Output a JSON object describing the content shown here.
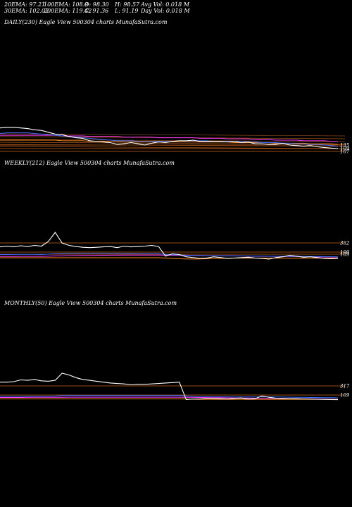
{
  "header": {
    "ema20": "20EMA: 97.21",
    "ema100": "100EMA: 108.9",
    "open": "O: 98.30",
    "high": "H: 98.57",
    "avg_vol": "Avg Vol: 0.018 M",
    "ema30": "30EMA: 102.02",
    "ema200": "200EMA: 119.42",
    "close": "C: 91.36",
    "low": "L: 91.19",
    "day_vol": "Day Vol: 0.018 M"
  },
  "panels": [
    {
      "id": "daily",
      "label": "DAILY(230) Eagle View 500304 charts MunafaSutra.com",
      "right_labels": [
        "135",
        "109",
        "107"
      ]
    },
    {
      "id": "weekly",
      "label": "WEEKLY(212) Eagle View 500304 charts MunafaSutra.com",
      "right_labels": [
        "352",
        "100",
        "109"
      ]
    },
    {
      "id": "monthly",
      "label": "MONTHLY(50) Eagle View 500304 charts MunafaSutra.com",
      "right_labels": [
        "317",
        "109"
      ]
    }
  ],
  "colors": {
    "background": "#000000",
    "price": "#ffffff",
    "ema_blue": "#3f6fff",
    "ema_orange": "#ff8c1a",
    "ema_magenta": "#ff3cff",
    "reference_line": "#c8641e"
  },
  "chart_data": [
    {
      "type": "line",
      "panel": "daily",
      "x": [
        0,
        1,
        2,
        3,
        4,
        5,
        6,
        7,
        8,
        9,
        10,
        11,
        12,
        13,
        14,
        15,
        16,
        17,
        18,
        19,
        20,
        21,
        22,
        23,
        24,
        25,
        26,
        27,
        28,
        29,
        30,
        31,
        32,
        33,
        34,
        35,
        36,
        37,
        38,
        39,
        40,
        41,
        42,
        43,
        44,
        45,
        46,
        47,
        48,
        49
      ],
      "series": [
        {
          "color": "#ffffff",
          "values": [
            140,
            141,
            141,
            140,
            139,
            137,
            136,
            133,
            130,
            129,
            126,
            124,
            123,
            119,
            118,
            117,
            116,
            113,
            114,
            116,
            114,
            112,
            115,
            117,
            116,
            118,
            119,
            119,
            120,
            118,
            118,
            118,
            118,
            117,
            118,
            116,
            117,
            114,
            114,
            113,
            113,
            115,
            112,
            111,
            110,
            111,
            109,
            108,
            107,
            106
          ]
        },
        {
          "color": "#3f6fff",
          "values": [
            131,
            132,
            132,
            132,
            132,
            131,
            130,
            129,
            128,
            127,
            126,
            125,
            124,
            123,
            122,
            121,
            120,
            119,
            119,
            119,
            118,
            118,
            118,
            118,
            118,
            118,
            119,
            119,
            119,
            119,
            119,
            118,
            118,
            118,
            118,
            118,
            117,
            117,
            116,
            116,
            116,
            115,
            115,
            114,
            114,
            113,
            113,
            112,
            111,
            110
          ]
        },
        {
          "color": "#ff8c1a",
          "values": [
            120,
            120,
            120,
            120,
            120,
            120,
            120,
            120,
            120,
            119,
            119,
            119,
            119,
            118,
            118,
            118,
            118,
            118,
            117,
            117,
            117,
            117,
            117,
            117,
            117,
            117,
            117,
            117,
            117,
            117,
            117,
            117,
            117,
            117,
            116,
            116,
            116,
            116,
            116,
            116,
            115,
            115,
            115,
            115,
            115,
            114,
            114,
            114,
            114,
            113
          ]
        },
        {
          "color": "#ff3cff",
          "values": [
            128,
            128,
            128,
            128,
            128,
            128,
            128,
            128,
            128,
            127,
            127,
            127,
            127,
            126,
            126,
            126,
            126,
            126,
            125,
            125,
            125,
            125,
            125,
            124,
            124,
            124,
            124,
            124,
            124,
            123,
            123,
            123,
            123,
            122,
            122,
            122,
            122,
            121,
            121,
            121,
            120,
            120,
            120,
            120,
            119,
            119,
            119,
            119,
            118,
            118
          ]
        }
      ],
      "reference_levels": [
        135,
        109,
        107
      ],
      "tick_labels": [
        "135",
        "109",
        "107"
      ]
    },
    {
      "type": "line",
      "panel": "weekly",
      "x": [
        0,
        1,
        2,
        3,
        4,
        5,
        6,
        7,
        8,
        9,
        10,
        11,
        12,
        13,
        14,
        15,
        16,
        17,
        18,
        19,
        20,
        21,
        22,
        23,
        24,
        25,
        26,
        27,
        28,
        29,
        30,
        31,
        32,
        33,
        34,
        35,
        36,
        37,
        38,
        39,
        40,
        41,
        42,
        43,
        44,
        45,
        46,
        47,
        48,
        49
      ],
      "series": [
        {
          "color": "#ffffff",
          "values": [
            250,
            260,
            250,
            265,
            255,
            270,
            260,
            320,
            440,
            300,
            270,
            255,
            245,
            240,
            245,
            250,
            255,
            240,
            260,
            250,
            255,
            260,
            270,
            255,
            130,
            160,
            150,
            120,
            110,
            100,
            105,
            120,
            110,
            100,
            105,
            110,
            115,
            105,
            100,
            90,
            110,
            120,
            140,
            130,
            115,
            120,
            110,
            100,
            95,
            100
          ]
        },
        {
          "color": "#3f6fff",
          "values": [
            150,
            150,
            151,
            152,
            153,
            152,
            150,
            155,
            162,
            164,
            165,
            166,
            166,
            166,
            166,
            166,
            165,
            165,
            165,
            164,
            163,
            162,
            162,
            161,
            150,
            148,
            145,
            142,
            140,
            138,
            137,
            136,
            135,
            134,
            133,
            132,
            131,
            130,
            129,
            128,
            128,
            127,
            127,
            126,
            126,
            125,
            124,
            123,
            122,
            121
          ]
        },
        {
          "color": "#ff8c1a",
          "values": [
            108,
            108,
            108,
            108,
            108,
            108,
            108,
            108,
            108,
            108,
            108,
            108,
            108,
            108,
            108,
            108,
            108,
            108,
            108,
            108,
            108,
            108,
            108,
            108,
            105,
            100,
            95,
            92,
            91,
            92,
            95,
            98,
            100,
            102,
            104,
            104,
            104,
            104,
            104,
            104,
            104,
            104,
            104,
            104,
            104,
            104,
            104,
            104,
            104,
            104
          ]
        },
        {
          "color": "#ff3cff",
          "values": [
            124,
            124,
            125,
            126,
            126,
            126,
            126,
            128,
            132,
            134,
            136,
            137,
            138,
            139,
            140,
            141,
            142,
            142,
            143,
            143,
            143,
            143,
            143,
            143,
            142,
            141,
            140,
            139,
            138,
            137,
            136,
            135,
            134,
            133,
            132,
            131,
            130,
            129,
            128,
            127,
            126,
            125,
            124,
            123,
            122,
            121,
            120,
            119,
            118,
            117
          ]
        }
      ],
      "reference_levels": [
        352,
        100,
        109
      ],
      "tick_labels": [
        "352",
        "100",
        "109"
      ]
    },
    {
      "type": "line",
      "panel": "monthly",
      "x": [
        0,
        1,
        2,
        3,
        4,
        5,
        6,
        7,
        8,
        9,
        10,
        11,
        12,
        13,
        14,
        15,
        16,
        17,
        18,
        19,
        20,
        21,
        22,
        23,
        24,
        25,
        26,
        27,
        28,
        29,
        30,
        31,
        32,
        33,
        34,
        35,
        36,
        37,
        38,
        39,
        40,
        41,
        42,
        43,
        44,
        45,
        46,
        47,
        48,
        49
      ],
      "series": [
        {
          "color": "#ffffff",
          "values": [
            300,
            300,
            305,
            325,
            320,
            330,
            315,
            310,
            320,
            400,
            380,
            350,
            330,
            320,
            310,
            300,
            290,
            285,
            280,
            270,
            275,
            275,
            280,
            285,
            290,
            295,
            300,
            105,
            110,
            110,
            120,
            118,
            115,
            112,
            118,
            122,
            110,
            115,
            145,
            130,
            120,
            118,
            116,
            114,
            112,
            110,
            108,
            106,
            104,
            103
          ]
        },
        {
          "color": "#3f6fff",
          "values": [
            140,
            141,
            141,
            142,
            142,
            143,
            143,
            143,
            144,
            148,
            150,
            150,
            150,
            150,
            150,
            150,
            150,
            150,
            149,
            149,
            149,
            149,
            149,
            149,
            149,
            149,
            149,
            145,
            140,
            138,
            137,
            136,
            135,
            135,
            134,
            134,
            133,
            133,
            134,
            134,
            133,
            132,
            131,
            130,
            129,
            128,
            127,
            126,
            125,
            124
          ]
        },
        {
          "color": "#ff8c1a",
          "values": [
            112,
            112,
            112,
            112,
            112,
            112,
            112,
            112,
            112,
            112,
            112,
            112,
            112,
            112,
            112,
            112,
            112,
            112,
            112,
            112,
            112,
            112,
            112,
            112,
            112,
            112,
            112,
            110,
            108,
            107,
            107,
            107,
            107,
            107,
            107,
            107,
            107,
            107,
            107,
            107,
            107,
            107,
            107,
            107,
            107,
            107,
            107,
            107,
            107,
            107
          ]
        },
        {
          "color": "#ff3cff",
          "values": [
            128,
            128,
            128,
            128,
            129,
            129,
            129,
            129,
            129,
            130,
            131,
            131,
            131,
            131,
            131,
            131,
            131,
            131,
            131,
            131,
            131,
            131,
            131,
            131,
            131,
            131,
            131,
            130,
            129,
            128,
            127,
            126,
            125,
            124,
            123,
            122,
            121,
            120,
            119,
            118,
            117,
            116,
            115,
            114,
            113,
            112,
            111,
            110,
            109,
            108
          ]
        }
      ],
      "reference_levels": [
        317,
        109
      ],
      "tick_labels": [
        "317",
        "109"
      ]
    }
  ]
}
